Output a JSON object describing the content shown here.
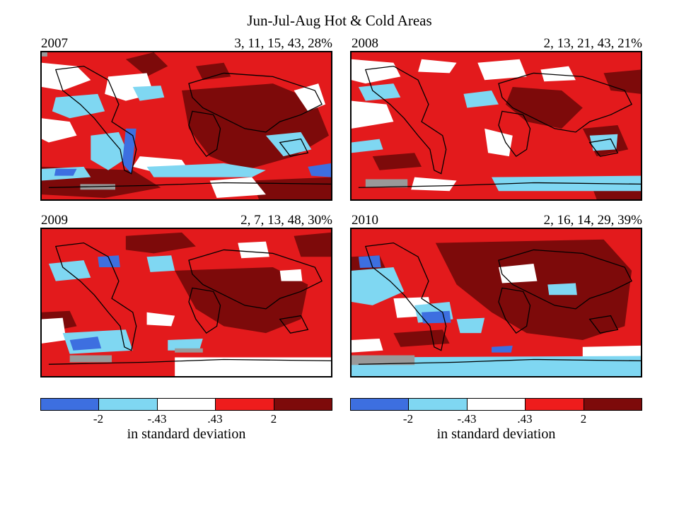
{
  "title": "Jun-Jul-Aug Hot & Cold Areas",
  "panels": [
    {
      "year": "2007",
      "stats": "3, 11, 15, 43, 28%"
    },
    {
      "year": "2008",
      "stats": "2, 13, 21, 43, 21%"
    },
    {
      "year": "2009",
      "stats": "2, 7, 13, 48, 30%"
    },
    {
      "year": "2010",
      "stats": "2, 16, 14, 29, 39%"
    }
  ],
  "legend": {
    "ticks": [
      "-2",
      "-.43",
      ".43",
      "2"
    ],
    "units": "in standard deviation",
    "colors": [
      "#3d6fe0",
      "#7fd7f2",
      "#ffffff",
      "#ee1c1c",
      "#7d0a0a"
    ]
  },
  "missing_color": "#999999"
}
